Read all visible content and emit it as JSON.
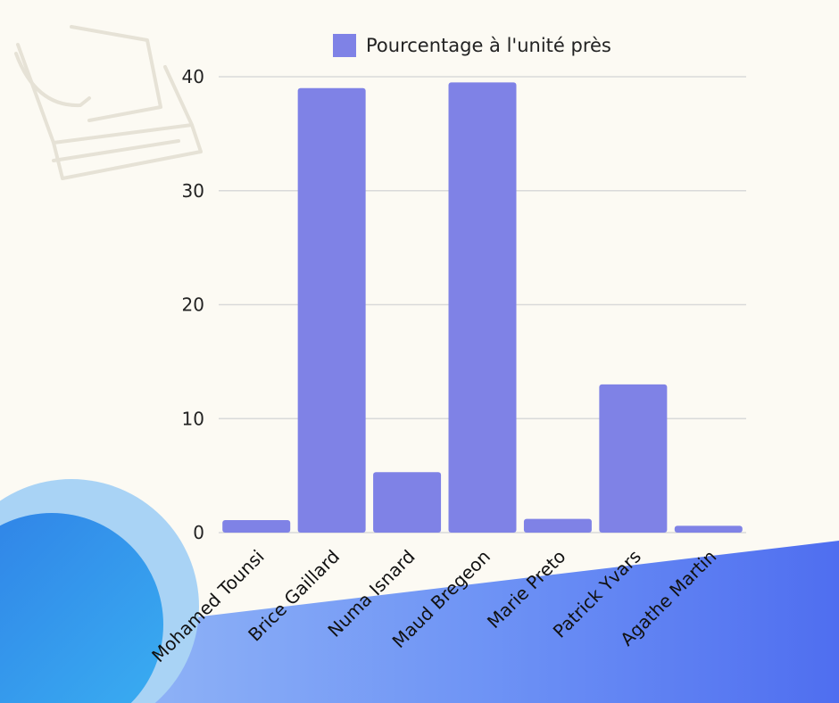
{
  "chart_data": {
    "type": "bar",
    "legend": "Pourcentage à l'unité près",
    "categories": [
      "Mohamed Tounsi",
      "Brice Gaillard",
      "Numa Isnard",
      "Maud Bregeon",
      "Marie Preto",
      "Patrick Yvars",
      "Agathe Martin"
    ],
    "series": [
      {
        "name": "Pourcentage à l'unité près",
        "values": [
          1.1,
          39,
          5.3,
          39.5,
          1.2,
          13,
          0.6
        ]
      }
    ],
    "y_ticks": [
      0,
      10,
      20,
      30,
      40
    ],
    "ylim": [
      0,
      40
    ],
    "grid": true,
    "legend_position": "top-center",
    "bar_color": "#7f82e6",
    "grid_color": "#d9d9d9"
  },
  "decor": {
    "background": "#fcfaf3",
    "ballot_icon": "ballot-box-hand-icon",
    "wave_color_left": "#3b8fe8",
    "wave_color_right": "#5b79f0"
  }
}
